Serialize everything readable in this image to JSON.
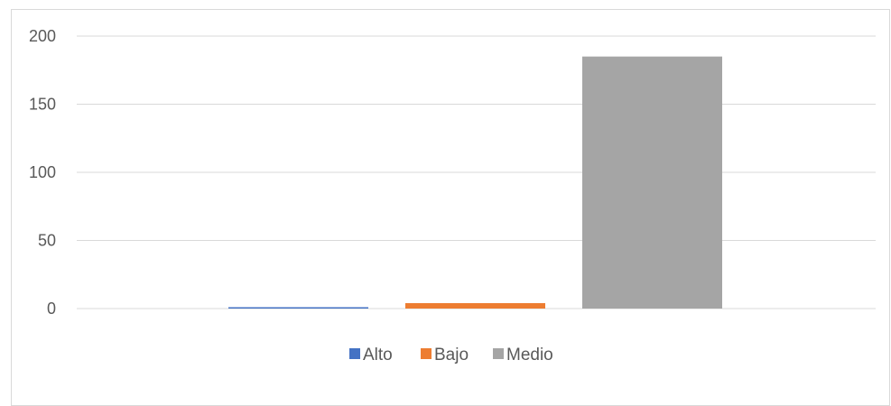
{
  "chart_data": {
    "type": "bar",
    "title": "",
    "xlabel": "",
    "ylabel": "",
    "ylim": [
      0,
      200
    ],
    "yticks": [
      0,
      50,
      100,
      150,
      200
    ],
    "grid": true,
    "legend_position": "bottom",
    "series": [
      {
        "name": "Alto",
        "value": 1,
        "color": "#4472c4"
      },
      {
        "name": "Bajo",
        "value": 4,
        "color": "#ed7d31"
      },
      {
        "name": "Medio",
        "value": 185,
        "color": "#a5a5a5"
      }
    ]
  }
}
